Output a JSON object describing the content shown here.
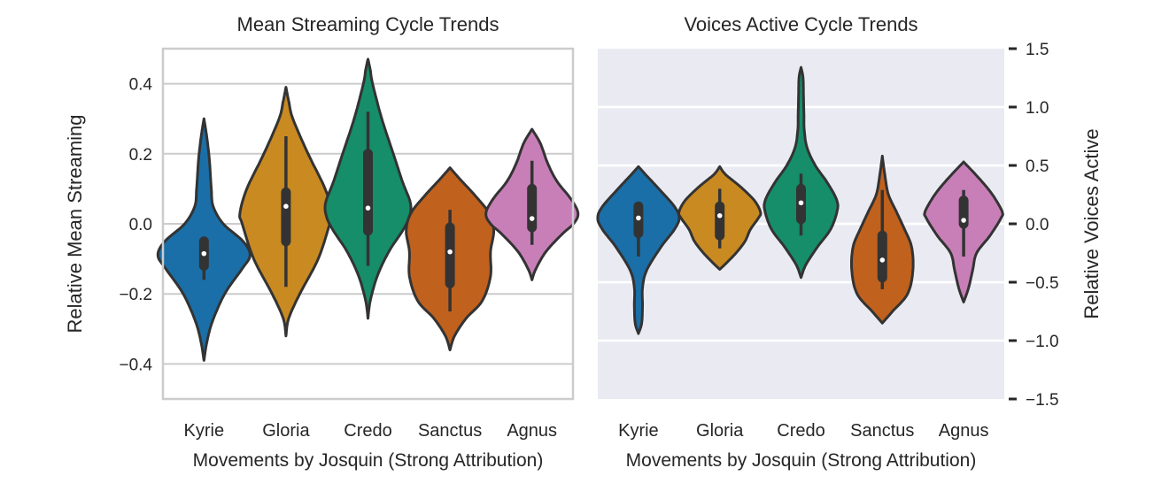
{
  "chart_data": [
    {
      "type": "violin",
      "title": "Mean Streaming Cycle Trends",
      "xlabel": "Movements by Josquin (Strong Attribution)",
      "ylabel": "Relative Mean Streaming",
      "ylim": [
        -0.5,
        0.5
      ],
      "yticks": [
        -0.4,
        -0.2,
        0.0,
        0.2,
        0.4
      ],
      "ytick_labels": [
        "−0.4",
        "−0.2",
        "0.0",
        "0.2",
        "0.4"
      ],
      "grid": true,
      "style": "whitegrid",
      "categories": [
        "Kyrie",
        "Gloria",
        "Credo",
        "Sanctus",
        "Agnus"
      ],
      "colors": [
        "#1a6fa8",
        "#c98a22",
        "#168e6a",
        "#c0611d",
        "#c87fb8"
      ],
      "series": [
        {
          "name": "Kyrie",
          "min": -0.39,
          "max": 0.3,
          "whisker_low": -0.16,
          "whisker_high": -0.04,
          "q1": -0.12,
          "q3": -0.05,
          "median": -0.085,
          "profile": [
            [
              -0.39,
              0.0
            ],
            [
              -0.34,
              0.06
            ],
            [
              -0.28,
              0.18
            ],
            [
              -0.2,
              0.45
            ],
            [
              -0.13,
              0.82
            ],
            [
              -0.09,
              1.0
            ],
            [
              -0.05,
              0.85
            ],
            [
              0.0,
              0.42
            ],
            [
              0.05,
              0.2
            ],
            [
              0.1,
              0.16
            ],
            [
              0.18,
              0.12
            ],
            [
              0.25,
              0.06
            ],
            [
              0.3,
              0.0
            ]
          ]
        },
        {
          "name": "Gloria",
          "min": -0.32,
          "max": 0.39,
          "whisker_low": -0.18,
          "whisker_high": 0.25,
          "q1": -0.05,
          "q3": 0.09,
          "median": 0.05,
          "profile": [
            [
              -0.32,
              0.0
            ],
            [
              -0.27,
              0.06
            ],
            [
              -0.2,
              0.3
            ],
            [
              -0.1,
              0.7
            ],
            [
              0.0,
              0.95
            ],
            [
              0.03,
              1.0
            ],
            [
              0.1,
              0.85
            ],
            [
              0.2,
              0.48
            ],
            [
              0.3,
              0.15
            ],
            [
              0.35,
              0.06
            ],
            [
              0.39,
              0.0
            ]
          ]
        },
        {
          "name": "Credo",
          "min": -0.27,
          "max": 0.47,
          "whisker_low": -0.12,
          "whisker_high": 0.32,
          "q1": -0.02,
          "q3": 0.2,
          "median": 0.045,
          "profile": [
            [
              -0.27,
              0.0
            ],
            [
              -0.22,
              0.05
            ],
            [
              -0.15,
              0.2
            ],
            [
              -0.08,
              0.45
            ],
            [
              -0.02,
              0.75
            ],
            [
              0.02,
              0.9
            ],
            [
              0.06,
              0.92
            ],
            [
              0.12,
              0.75
            ],
            [
              0.2,
              0.55
            ],
            [
              0.3,
              0.3
            ],
            [
              0.4,
              0.1
            ],
            [
              0.44,
              0.05
            ],
            [
              0.47,
              0.0
            ]
          ]
        },
        {
          "name": "Sanctus",
          "min": -0.36,
          "max": 0.16,
          "whisker_low": -0.25,
          "whisker_high": 0.04,
          "q1": -0.17,
          "q3": -0.01,
          "median": -0.08,
          "profile": [
            [
              -0.36,
              0.0
            ],
            [
              -0.32,
              0.1
            ],
            [
              -0.27,
              0.35
            ],
            [
              -0.22,
              0.7
            ],
            [
              -0.15,
              0.88
            ],
            [
              -0.08,
              0.88
            ],
            [
              -0.02,
              0.95
            ],
            [
              0.03,
              0.85
            ],
            [
              0.08,
              0.55
            ],
            [
              0.13,
              0.2
            ],
            [
              0.16,
              0.0
            ]
          ]
        },
        {
          "name": "Agnus",
          "min": -0.16,
          "max": 0.27,
          "whisker_low": -0.06,
          "whisker_high": 0.18,
          "q1": -0.01,
          "q3": 0.1,
          "median": 0.015,
          "profile": [
            [
              -0.16,
              0.0
            ],
            [
              -0.13,
              0.08
            ],
            [
              -0.08,
              0.3
            ],
            [
              -0.03,
              0.65
            ],
            [
              0.0,
              0.9
            ],
            [
              0.03,
              1.0
            ],
            [
              0.07,
              0.85
            ],
            [
              0.12,
              0.55
            ],
            [
              0.17,
              0.35
            ],
            [
              0.23,
              0.18
            ],
            [
              0.27,
              0.0
            ]
          ]
        }
      ]
    },
    {
      "type": "violin",
      "title": "Voices Active Cycle Trends",
      "xlabel": "Movements by Josquin (Strong Attribution)",
      "ylabel": "Relative Voices Active",
      "ylim": [
        -1.5,
        1.5
      ],
      "yticks": [
        -1.5,
        -1.0,
        -0.5,
        0.0,
        0.5,
        1.0,
        1.5
      ],
      "ytick_labels": [
        "−1.5",
        "−1.0",
        "−0.5",
        "0.0",
        "0.5",
        "1.0",
        "1.5"
      ],
      "yaxis_side": "right",
      "grid": true,
      "style": "darkgrid",
      "categories": [
        "Kyrie",
        "Gloria",
        "Credo",
        "Sanctus",
        "Agnus"
      ],
      "colors": [
        "#1a6fa8",
        "#c98a22",
        "#168e6a",
        "#c0611d",
        "#c87fb8"
      ],
      "series": [
        {
          "name": "Kyrie",
          "min": -0.94,
          "max": 0.49,
          "whisker_low": -0.28,
          "whisker_high": 0.18,
          "q1": -0.08,
          "q3": 0.15,
          "median": 0.05,
          "profile": [
            [
              -0.94,
              0.0
            ],
            [
              -0.85,
              0.08
            ],
            [
              -0.7,
              0.1
            ],
            [
              -0.55,
              0.1
            ],
            [
              -0.4,
              0.2
            ],
            [
              -0.2,
              0.55
            ],
            [
              -0.05,
              0.88
            ],
            [
              0.05,
              1.0
            ],
            [
              0.15,
              0.88
            ],
            [
              0.3,
              0.5
            ],
            [
              0.42,
              0.18
            ],
            [
              0.49,
              0.0
            ]
          ]
        },
        {
          "name": "Gloria",
          "min": -0.39,
          "max": 0.49,
          "whisker_low": -0.21,
          "whisker_high": 0.3,
          "q1": -0.1,
          "q3": 0.15,
          "median": 0.07,
          "profile": [
            [
              -0.39,
              0.0
            ],
            [
              -0.34,
              0.15
            ],
            [
              -0.25,
              0.4
            ],
            [
              -0.15,
              0.62
            ],
            [
              -0.05,
              0.75
            ],
            [
              0.05,
              0.95
            ],
            [
              0.1,
              1.0
            ],
            [
              0.2,
              0.85
            ],
            [
              0.32,
              0.5
            ],
            [
              0.42,
              0.15
            ],
            [
              0.49,
              0.0
            ]
          ]
        },
        {
          "name": "Credo",
          "min": -0.46,
          "max": 1.34,
          "whisker_low": -0.1,
          "whisker_high": 0.43,
          "q1": 0.04,
          "q3": 0.3,
          "median": 0.18,
          "profile": [
            [
              -0.46,
              0.0
            ],
            [
              -0.35,
              0.12
            ],
            [
              -0.2,
              0.4
            ],
            [
              -0.05,
              0.72
            ],
            [
              0.1,
              0.88
            ],
            [
              0.2,
              0.88
            ],
            [
              0.35,
              0.65
            ],
            [
              0.5,
              0.35
            ],
            [
              0.65,
              0.15
            ],
            [
              0.8,
              0.08
            ],
            [
              0.95,
              0.07
            ],
            [
              1.1,
              0.06
            ],
            [
              1.25,
              0.05
            ],
            [
              1.34,
              0.0
            ]
          ]
        },
        {
          "name": "Sanctus",
          "min": -0.85,
          "max": 0.58,
          "whisker_low": -0.56,
          "whisker_high": 0.29,
          "q1": -0.46,
          "q3": -0.1,
          "median": -0.31,
          "profile": [
            [
              -0.85,
              0.0
            ],
            [
              -0.75,
              0.25
            ],
            [
              -0.6,
              0.62
            ],
            [
              -0.4,
              0.75
            ],
            [
              -0.2,
              0.72
            ],
            [
              -0.05,
              0.55
            ],
            [
              0.1,
              0.35
            ],
            [
              0.25,
              0.15
            ],
            [
              0.4,
              0.07
            ],
            [
              0.58,
              0.0
            ]
          ]
        },
        {
          "name": "Agnus",
          "min": -0.67,
          "max": 0.53,
          "whisker_low": -0.28,
          "whisker_high": 0.29,
          "q1": 0.0,
          "q3": 0.2,
          "median": 0.03,
          "profile": [
            [
              -0.67,
              0.0
            ],
            [
              -0.55,
              0.12
            ],
            [
              -0.4,
              0.22
            ],
            [
              -0.25,
              0.32
            ],
            [
              -0.1,
              0.65
            ],
            [
              0.05,
              0.92
            ],
            [
              0.1,
              0.95
            ],
            [
              0.2,
              0.8
            ],
            [
              0.3,
              0.6
            ],
            [
              0.42,
              0.3
            ],
            [
              0.53,
              0.0
            ]
          ]
        }
      ]
    }
  ]
}
